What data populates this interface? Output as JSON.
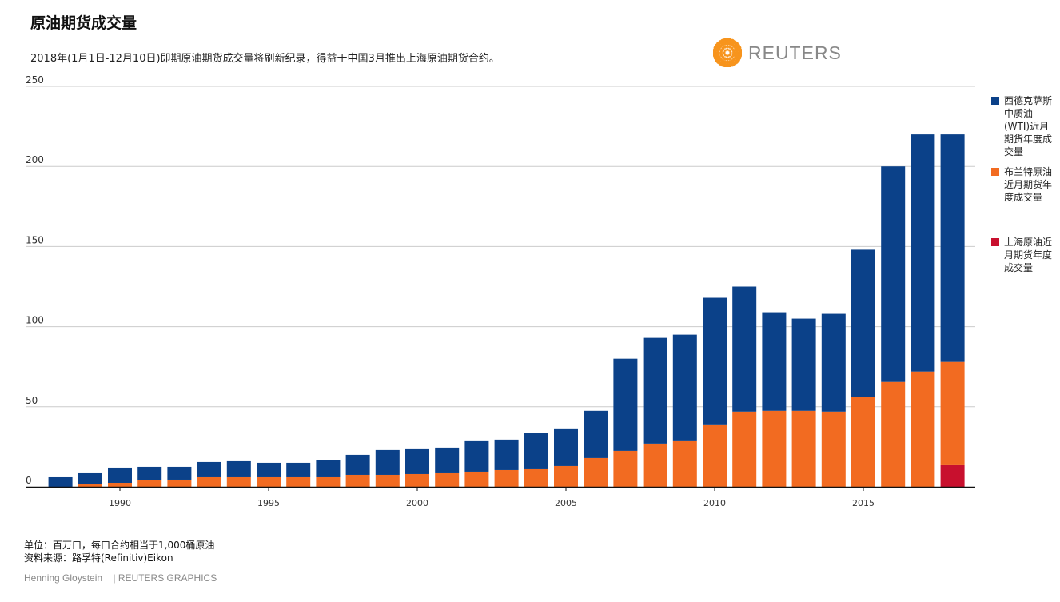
{
  "title": "原油期货成交量",
  "subtitle": "2018年(1月1日-12月10日)即期原油期货成交量将刷新纪录，得益于中国3月推出上海原油期货合约。",
  "logo": "REUTERS",
  "notes": [
    "单位：百万口，每口合约相当于1,000桶原油",
    "资料来源：路孚特(Refinitiv)Eikon"
  ],
  "credit": {
    "author": "Henning Gloystein",
    "org": "| REUTERS GRAPHICS"
  },
  "chart_data": {
    "type": "bar",
    "stacked": true,
    "ylim": [
      0,
      250
    ],
    "yticks": [
      0,
      50,
      100,
      150,
      200,
      250
    ],
    "xticks": [
      1990,
      1995,
      2000,
      2005,
      2010,
      2015
    ],
    "grid": true,
    "legend_position": "right",
    "categories": [
      1988,
      1989,
      1990,
      1991,
      1992,
      1993,
      1994,
      1995,
      1996,
      1997,
      1998,
      1999,
      2000,
      2001,
      2002,
      2003,
      2004,
      2005,
      2006,
      2007,
      2008,
      2009,
      2010,
      2011,
      2012,
      2013,
      2014,
      2015,
      2016,
      2017,
      2018
    ],
    "series": [
      {
        "name": "上海原油近月期货年度成交量",
        "color": "#c8102e",
        "values": [
          0,
          0,
          0,
          0,
          0,
          0,
          0,
          0,
          0,
          0,
          0,
          0,
          0,
          0,
          0,
          0,
          0,
          0,
          0,
          0,
          0,
          0,
          0,
          0,
          0,
          0,
          0,
          0,
          0,
          0,
          13.5
        ]
      },
      {
        "name": "布兰特原油近月期货年度成交量",
        "color": "#f26b21",
        "values": [
          0,
          1.5,
          2.5,
          4,
          4.5,
          6,
          6,
          6,
          6,
          6,
          7.5,
          7.5,
          8,
          8.5,
          9.5,
          10.5,
          11,
          13,
          18,
          22.5,
          27,
          29,
          39,
          47,
          47.5,
          47.5,
          47,
          56,
          65.5,
          72,
          64.5
        ]
      },
      {
        "name": "西德克萨斯中质油(WTI)近月期货年度成交量",
        "color": "#0b4189",
        "values": [
          6,
          7,
          9.5,
          8.5,
          8,
          9.5,
          10,
          9,
          9,
          10.5,
          12.5,
          15.5,
          16,
          16,
          19.5,
          19,
          22.5,
          23.5,
          29.5,
          57.5,
          66,
          66,
          79,
          78,
          61.5,
          57.5,
          61,
          92,
          134.5,
          148,
          142
        ]
      }
    ]
  }
}
